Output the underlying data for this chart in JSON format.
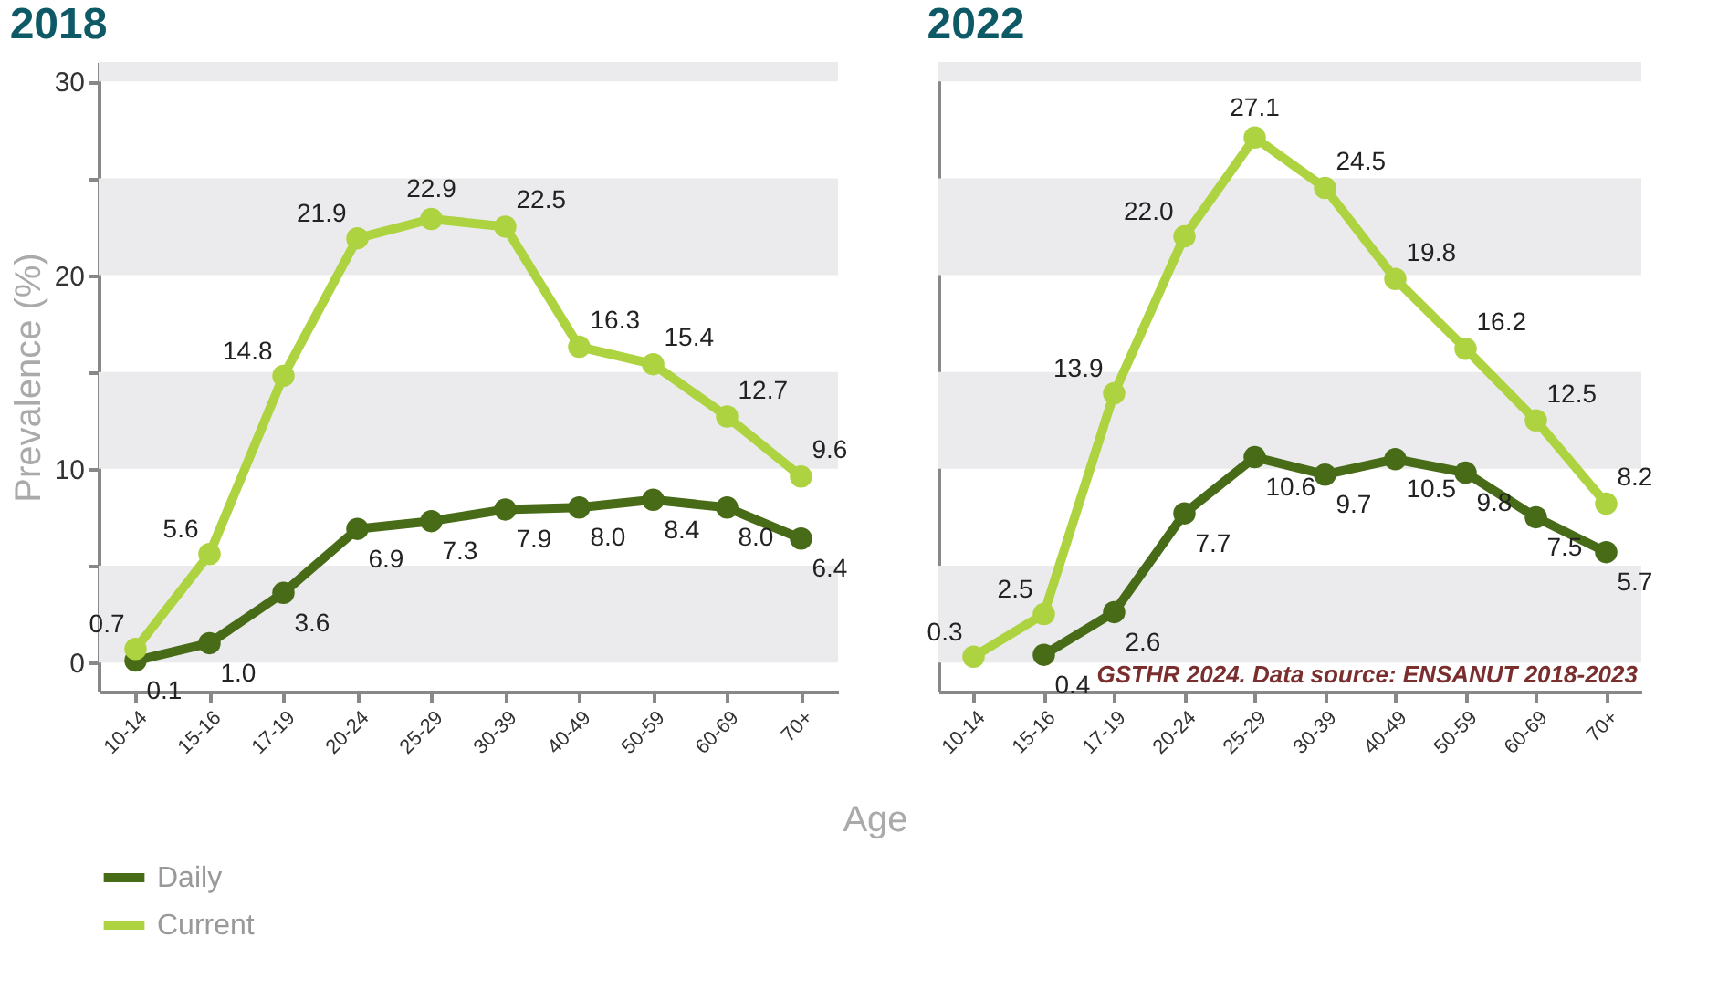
{
  "chart_data": [
    {
      "type": "line",
      "title": "2018",
      "xlabel": "Age",
      "ylabel": "Prevalence (%)",
      "categories": [
        "10-14",
        "15-16",
        "17-19",
        "20-24",
        "25-29",
        "30-39",
        "40-49",
        "50-59",
        "60-69",
        "70+"
      ],
      "series": [
        {
          "name": "Daily",
          "color": "#476b17",
          "values": [
            0.1,
            1.0,
            3.6,
            6.9,
            7.3,
            7.9,
            8.0,
            8.4,
            8.0,
            6.4
          ],
          "value_labels": [
            "0.1",
            "1.0",
            "3.6",
            "6.9",
            "7.3",
            "7.9",
            "8.0",
            "8.4",
            "8.0",
            "6.4"
          ]
        },
        {
          "name": "Current",
          "color": "#add340",
          "values": [
            0.7,
            5.6,
            14.8,
            21.9,
            22.9,
            22.5,
            16.3,
            15.4,
            12.7,
            9.6
          ],
          "value_labels": [
            "0.7",
            "5.6",
            "14.8",
            "21.9",
            "22.9",
            "22.5",
            "16.3",
            "15.4",
            "12.7",
            "9.6"
          ]
        }
      ],
      "ylim": [
        -1.5,
        31
      ],
      "yticks": [
        0,
        {
          "value": 5,
          "label": null
        },
        10,
        {
          "value": 15,
          "label": null
        },
        20,
        {
          "value": 25,
          "label": null
        },
        30
      ],
      "bands": [
        {
          "axis": "y",
          "from": 0,
          "to": 5,
          "color": "#ebebed"
        },
        {
          "axis": "y",
          "from": 10,
          "to": 15,
          "color": "#ebebed"
        },
        {
          "axis": "y",
          "from": 20,
          "to": 25,
          "color": "#ebebed"
        },
        {
          "axis": "y",
          "from": 30,
          "to": 31,
          "color": "#ebebed"
        }
      ],
      "marker": "circle",
      "legend": "bottom"
    },
    {
      "type": "line",
      "title": "2022",
      "categories": [
        "10-14",
        "15-16",
        "17-19",
        "20-24",
        "25-29",
        "30-39",
        "40-49",
        "50-59",
        "60-69",
        "70+"
      ],
      "series": [
        {
          "color": "#476b17",
          "values": [
            null,
            0.4,
            2.6,
            7.7,
            10.6,
            9.7,
            10.5,
            9.8,
            7.5,
            5.7
          ],
          "value_labels": [
            null,
            "0.4",
            "2.6",
            "7.7",
            "10.6",
            "9.7",
            "10.5",
            "9.8",
            "7.5",
            "5.7"
          ]
        },
        {
          "color": "#add340",
          "values": [
            0.3,
            2.5,
            13.9,
            22.0,
            27.1,
            24.5,
            19.8,
            16.2,
            12.5,
            8.2
          ],
          "value_labels": [
            "0.3",
            "2.5",
            "13.9",
            "22.0",
            "27.1",
            "24.5",
            "19.8",
            "16.2",
            "12.5",
            "8.2"
          ]
        }
      ],
      "ylim": [
        -1.5,
        31
      ],
      "tick_labels": "x",
      "bands": [
        {
          "axis": "y",
          "from": 0,
          "to": 5,
          "color": "#ebebed"
        },
        {
          "axis": "y",
          "from": 10,
          "to": 15,
          "color": "#ebebed"
        },
        {
          "axis": "y",
          "from": 20,
          "to": 25,
          "color": "#ebebed"
        },
        {
          "axis": "y",
          "from": 30,
          "to": 31,
          "color": "#ebebed"
        }
      ],
      "annotations": [
        "GSTHR 2024. Data source: ENSANUT 2018-2023"
      ],
      "marker": "circle"
    }
  ]
}
